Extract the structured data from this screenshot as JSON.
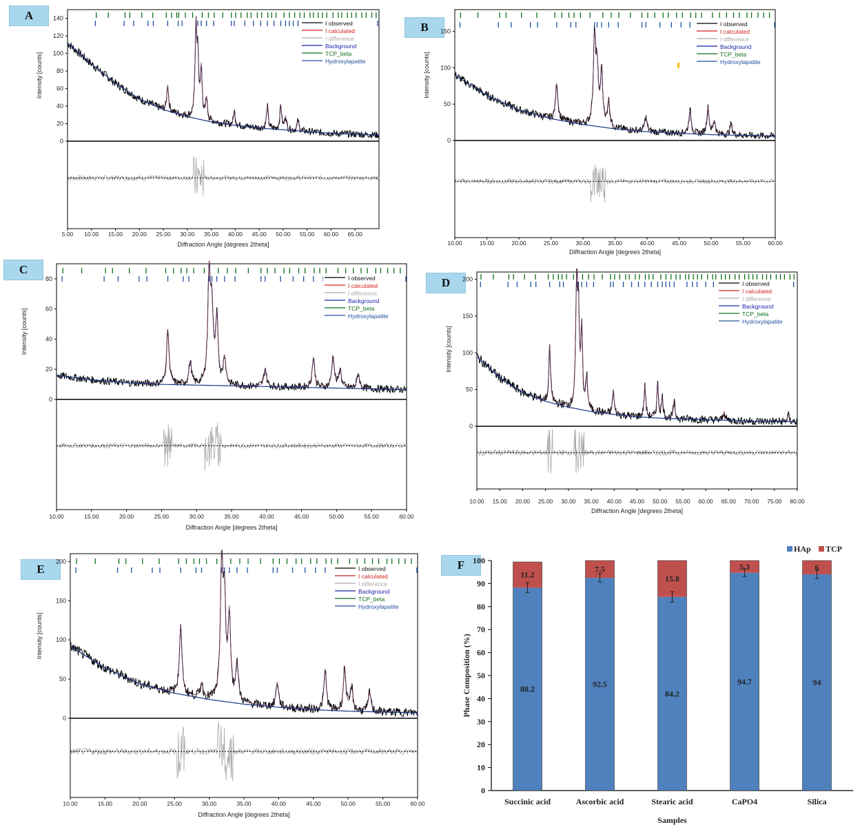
{
  "xrd_common": {
    "ylabel": "Intensity [counts]",
    "xlabel": "Diffraction Angle [degrees 2theta]",
    "legend": [
      {
        "name": "I observed",
        "color": "#000000"
      },
      {
        "name": "I calculated",
        "color": "#d0201e"
      },
      {
        "name": "I difference",
        "color": "#a8a8a8"
      },
      {
        "name": "Background",
        "color": "#1c22a8"
      },
      {
        "name": "TCP_beta",
        "color": "#0f6e1a"
      },
      {
        "name": "Hydroxylapatite",
        "color": "#1f4fa0"
      }
    ]
  },
  "chart_data": [
    {
      "type": "line",
      "label": "A",
      "x_range": [
        5,
        70
      ],
      "ylim": [
        0,
        150
      ],
      "yticks": [
        "0",
        "20",
        "40",
        "60",
        "80",
        "100",
        "120",
        "140"
      ],
      "xticks": [
        "5.00",
        "10.00",
        "15.00",
        "20.00",
        "25.00",
        "30.00",
        "35.00",
        "40.00",
        "45.00",
        "50.00",
        "55.00",
        "60.00",
        "65.00"
      ],
      "background": [
        [
          5,
          112
        ],
        [
          10,
          88
        ],
        [
          15,
          66
        ],
        [
          20,
          48
        ],
        [
          25,
          36
        ],
        [
          30,
          28
        ],
        [
          35,
          22
        ],
        [
          40,
          18
        ],
        [
          45,
          15
        ],
        [
          50,
          13
        ],
        [
          55,
          11
        ],
        [
          60,
          9
        ],
        [
          65,
          8
        ],
        [
          70,
          7
        ]
      ],
      "peaks": [
        [
          25.9,
          30
        ],
        [
          31.8,
          100
        ],
        [
          32.2,
          60
        ],
        [
          32.9,
          55
        ],
        [
          34.0,
          25
        ],
        [
          39.8,
          16
        ],
        [
          46.7,
          25
        ],
        [
          49.5,
          28
        ],
        [
          50.5,
          15
        ],
        [
          53.1,
          12
        ]
      ],
      "tcp_ticks": [
        11,
        13.5,
        17,
        18,
        20.5,
        22.8,
        25.6,
        26.7,
        27.8,
        28.2,
        29.6,
        31.1,
        33.1,
        34.4,
        35.6,
        37.4,
        39.2,
        40.1,
        41.2,
        42.5,
        43.3,
        44.6,
        45.5,
        46.8,
        47.6,
        48.5,
        50.2,
        51.3,
        52.4,
        53.5,
        54.4,
        55.6,
        56.3,
        57.3,
        58.2,
        59.1,
        60.4,
        61.5,
        62.2,
        63.4,
        64.3,
        65.2,
        66.4,
        67.3,
        68.5,
        69.4
      ],
      "hap_ticks": [
        10.8,
        16.8,
        18.8,
        21.8,
        22.9,
        25.9,
        28.1,
        28.9,
        31.8,
        32.2,
        32.9,
        34.0,
        35.5,
        39.2,
        39.8,
        42.0,
        43.8,
        45.3,
        46.7,
        48.1,
        49.5,
        50.5,
        51.3,
        52.1,
        53.1,
        55.9,
        57.1,
        58.1,
        60.0,
        61.7,
        63.0,
        64.1,
        65.0,
        66.4,
        69.7
      ]
    },
    {
      "type": "line",
      "label": "B",
      "x_range": [
        10,
        60
      ],
      "ylim": [
        0,
        180
      ],
      "yticks": [
        "0",
        "50",
        "100",
        "150"
      ],
      "xticks": [
        "10.00",
        "15.00",
        "20.00",
        "25.00",
        "30.00",
        "35.00",
        "40.00",
        "45.00",
        "50.00",
        "55.00",
        "60.00"
      ],
      "background": [
        [
          10,
          90
        ],
        [
          15,
          62
        ],
        [
          20,
          42
        ],
        [
          25,
          30
        ],
        [
          30,
          22
        ],
        [
          35,
          16
        ],
        [
          40,
          12
        ],
        [
          45,
          10
        ],
        [
          50,
          8
        ],
        [
          55,
          7
        ],
        [
          60,
          6
        ]
      ],
      "peaks": [
        [
          25.9,
          50
        ],
        [
          31.8,
          115
        ],
        [
          32.2,
          70
        ],
        [
          32.9,
          70
        ],
        [
          34.0,
          35
        ],
        [
          39.8,
          20
        ],
        [
          46.7,
          32
        ],
        [
          49.5,
          36
        ],
        [
          50.5,
          18
        ],
        [
          53.1,
          15
        ]
      ],
      "tcp_ticks": [
        10.9,
        13.6,
        17.0,
        18.0,
        20.4,
        22.8,
        25.6,
        26.7,
        27.8,
        28.6,
        29.6,
        31.1,
        33.1,
        34.4,
        35.6,
        37.4,
        39.2,
        40.1,
        41.2,
        42.5,
        43.3,
        44.6,
        45.5,
        46.8,
        47.6,
        48.5,
        50.2,
        51.3,
        52.4,
        53.5,
        54.4,
        55.6,
        56.3,
        57.3,
        58.2,
        59.1
      ],
      "hap_ticks": [
        10.8,
        16.8,
        18.8,
        21.8,
        22.9,
        25.9,
        28.1,
        28.9,
        31.8,
        32.2,
        32.9,
        34.0,
        35.5,
        39.2,
        39.8,
        42.0,
        43.8,
        45.3,
        46.7,
        48.1,
        49.5,
        50.5,
        51.3,
        52.1,
        53.1,
        55.9,
        57.1,
        58.1,
        59.9
      ]
    },
    {
      "type": "line",
      "label": "C",
      "x_range": [
        10,
        60
      ],
      "ylim": [
        0,
        90
      ],
      "yticks": [
        "0",
        "20",
        "40",
        "60",
        "80"
      ],
      "xticks": [
        "10.00",
        "15.00",
        "20.00",
        "25.00",
        "30.00",
        "35.00",
        "40.00",
        "45.00",
        "50.00",
        "55.00",
        "60.00"
      ],
      "background": [
        [
          10,
          16
        ],
        [
          15,
          13
        ],
        [
          20,
          11
        ],
        [
          25,
          10
        ],
        [
          30,
          9.5
        ],
        [
          35,
          9
        ],
        [
          40,
          8.5
        ],
        [
          45,
          8
        ],
        [
          50,
          7.5
        ],
        [
          55,
          7
        ],
        [
          60,
          6.5
        ]
      ],
      "peaks": [
        [
          25.9,
          36
        ],
        [
          29.1,
          15
        ],
        [
          31.8,
          72
        ],
        [
          32.2,
          45
        ],
        [
          32.9,
          42
        ],
        [
          34.0,
          18
        ],
        [
          39.8,
          12
        ],
        [
          46.7,
          20
        ],
        [
          49.5,
          21
        ],
        [
          50.5,
          12
        ],
        [
          53.1,
          10
        ]
      ],
      "tcp_ticks": [
        10.9,
        13.6,
        17.0,
        18.0,
        20.4,
        22.8,
        25.6,
        26.7,
        27.8,
        28.6,
        29.6,
        31.1,
        33.1,
        34.4,
        35.6,
        37.4,
        39.2,
        40.1,
        41.2,
        42.5,
        43.3,
        44.6,
        45.5,
        46.8,
        47.6,
        48.5,
        50.2,
        51.3,
        52.4,
        53.5,
        54.4,
        55.6,
        56.3,
        57.3,
        58.2,
        59.1
      ],
      "hap_ticks": [
        10.8,
        16.8,
        18.8,
        21.8,
        22.9,
        25.9,
        28.1,
        28.9,
        31.8,
        32.2,
        32.9,
        34.0,
        35.5,
        39.2,
        39.8,
        42.0,
        43.8,
        45.3,
        46.7,
        48.1,
        49.5,
        50.5,
        51.3,
        52.1,
        53.1,
        55.9,
        57.1,
        58.1,
        59.9
      ]
    },
    {
      "type": "line",
      "label": "D",
      "x_range": [
        10,
        80
      ],
      "ylim": [
        0,
        210
      ],
      "yticks": [
        "0",
        "50",
        "100",
        "150",
        "200"
      ],
      "xticks": [
        "10.00",
        "15.00",
        "20.00",
        "25.00",
        "30.00",
        "35.00",
        "40.00",
        "45.00",
        "50.00",
        "55.00",
        "60.00",
        "65.00",
        "70.00",
        "75.00",
        "80.00"
      ],
      "background": [
        [
          10,
          95
        ],
        [
          15,
          66
        ],
        [
          20,
          46
        ],
        [
          25,
          34
        ],
        [
          30,
          26
        ],
        [
          35,
          20
        ],
        [
          40,
          16
        ],
        [
          45,
          13
        ],
        [
          50,
          11
        ],
        [
          55,
          10
        ],
        [
          60,
          9
        ],
        [
          65,
          8
        ],
        [
          70,
          7
        ],
        [
          75,
          6.5
        ],
        [
          80,
          6
        ]
      ],
      "peaks": [
        [
          25.9,
          78
        ],
        [
          31.8,
          175
        ],
        [
          32.2,
          120
        ],
        [
          32.9,
          105
        ],
        [
          34.0,
          45
        ],
        [
          39.8,
          32
        ],
        [
          46.7,
          42
        ],
        [
          49.5,
          45
        ],
        [
          50.5,
          28
        ],
        [
          53.1,
          22
        ],
        [
          64.0,
          12
        ],
        [
          78.0,
          10
        ]
      ],
      "tcp_ticks": [
        10.9,
        13.6,
        17.0,
        18.0,
        20.4,
        22.8,
        25.6,
        26.7,
        27.8,
        28.6,
        29.6,
        31.1,
        33.1,
        34.4,
        35.6,
        37.4,
        39.2,
        40.1,
        41.2,
        42.5,
        43.3,
        44.6,
        45.5,
        46.8,
        47.6,
        48.5,
        50.2,
        51.3,
        52.4,
        53.5,
        54.4,
        55.6,
        56.3,
        57.3,
        58.2,
        59.1,
        60.4,
        61.5,
        62.2,
        63.4,
        64.3,
        65.2,
        66.4,
        67.3,
        68.5,
        69.4,
        70.3,
        71.2,
        72.4,
        73.3,
        74.2,
        75.4,
        76.3,
        77.2,
        78.4,
        79.3
      ],
      "hap_ticks": [
        10.8,
        16.8,
        18.8,
        21.8,
        22.9,
        25.9,
        28.1,
        28.9,
        31.8,
        32.2,
        32.9,
        34.0,
        35.5,
        39.2,
        39.8,
        42.0,
        43.8,
        45.3,
        46.7,
        48.1,
        49.5,
        50.5,
        51.3,
        52.1,
        53.1,
        55.9,
        57.1,
        58.1,
        60.0,
        61.7,
        63.0,
        64.1,
        65.0,
        66.4,
        69.7,
        79.2
      ]
    },
    {
      "type": "line",
      "label": "E",
      "x_range": [
        10,
        60
      ],
      "ylim": [
        0,
        210
      ],
      "yticks": [
        "0",
        "50",
        "100",
        "150",
        "200"
      ],
      "xticks": [
        "10.00",
        "15.00",
        "20.00",
        "25.00",
        "30.00",
        "35.00",
        "40.00",
        "45.00",
        "50.00",
        "55.00",
        "60.00"
      ],
      "background": [
        [
          10,
          92
        ],
        [
          15,
          64
        ],
        [
          20,
          44
        ],
        [
          25,
          32
        ],
        [
          30,
          24
        ],
        [
          35,
          18
        ],
        [
          40,
          14
        ],
        [
          45,
          11
        ],
        [
          50,
          9
        ],
        [
          55,
          8
        ],
        [
          60,
          7
        ]
      ],
      "peaks": [
        [
          25.9,
          88
        ],
        [
          28.9,
          18
        ],
        [
          31.8,
          175
        ],
        [
          32.2,
          110
        ],
        [
          32.9,
          105
        ],
        [
          34.0,
          50
        ],
        [
          39.8,
          32
        ],
        [
          46.7,
          50
        ],
        [
          49.5,
          55
        ],
        [
          50.5,
          30
        ],
        [
          53.1,
          25
        ]
      ],
      "tcp_ticks": [
        10.9,
        13.6,
        17.0,
        18.0,
        20.4,
        22.8,
        25.6,
        26.7,
        27.8,
        28.6,
        29.6,
        31.1,
        33.1,
        34.4,
        35.6,
        37.4,
        39.2,
        40.1,
        41.2,
        42.5,
        43.3,
        44.6,
        45.5,
        46.8,
        47.6,
        48.5,
        50.2,
        51.3,
        52.4,
        53.5,
        54.4,
        55.6,
        56.3,
        57.3,
        58.2,
        59.1
      ],
      "hap_ticks": [
        10.8,
        16.8,
        18.8,
        21.8,
        22.9,
        25.9,
        28.1,
        28.9,
        31.8,
        32.2,
        32.9,
        34.0,
        35.5,
        39.2,
        39.8,
        42.0,
        43.8,
        45.3,
        46.7,
        48.1,
        49.5,
        50.5,
        51.3,
        52.1,
        53.1,
        55.9,
        57.1,
        58.1,
        59.9
      ]
    },
    {
      "type": "bar",
      "label": "F",
      "stacked": true,
      "categories": [
        "Succinic acid",
        "Ascorbic acid",
        "Stearic acid",
        "CaPO4",
        "Silica"
      ],
      "series": [
        {
          "name": "HAp",
          "color": "#4f81bd",
          "values": [
            88.2,
            92.5,
            84.2,
            94.7,
            94
          ],
          "errors": [
            2.2,
            1.8,
            2.2,
            1.6,
            1.8
          ],
          "labels": [
            "88.2",
            "92.5",
            "84.2",
            "94.7",
            "94"
          ]
        },
        {
          "name": "TCP",
          "color": "#c0504d",
          "values": [
            11.2,
            7.5,
            15.8,
            5.3,
            6
          ],
          "labels": [
            "11.2",
            "7.5",
            "15.8",
            "5.3",
            "6"
          ]
        }
      ],
      "ylabel": "Phase Composition (%)",
      "xlabel": "Samples",
      "ylim": [
        0,
        100
      ],
      "yticks": [
        "0",
        "10",
        "20",
        "30",
        "40",
        "50",
        "60",
        "70",
        "80",
        "90",
        "100"
      ],
      "legend_position": "top-right"
    }
  ]
}
